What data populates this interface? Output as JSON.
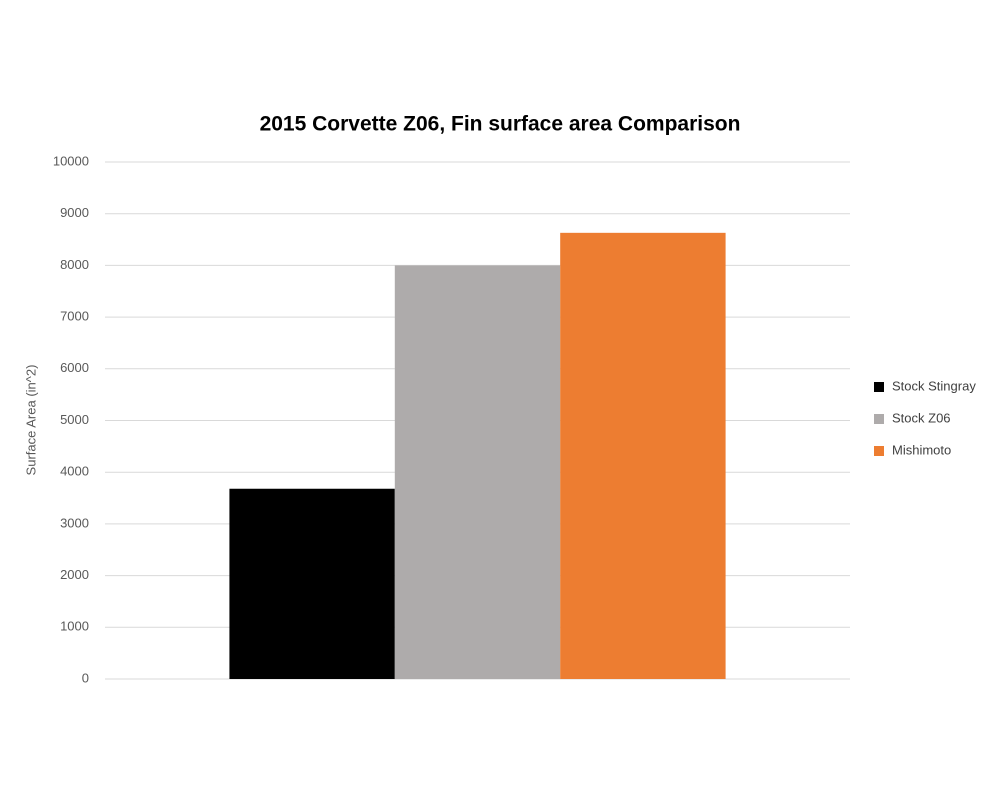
{
  "chart_data": {
    "type": "bar",
    "title": "2015 Corvette Z06, Fin surface area Comparison",
    "y_label": "Surface Area (in^2)",
    "categories": [
      null
    ],
    "series": [
      {
        "name": "Stock Stingray",
        "color": "#000000",
        "values": [
          3680
        ]
      },
      {
        "name": "Stock Z06",
        "color": "#aeabab",
        "values": [
          8000
        ]
      },
      {
        "name": "Mishimoto",
        "color": "#ed7d31",
        "values": [
          8630
        ]
      }
    ],
    "ylim": [
      0,
      10000
    ],
    "yticks": [
      0,
      1000,
      2000,
      3000,
      4000,
      5000,
      6000,
      7000,
      8000,
      9000,
      10000
    ],
    "grid": true,
    "legend": "right"
  }
}
